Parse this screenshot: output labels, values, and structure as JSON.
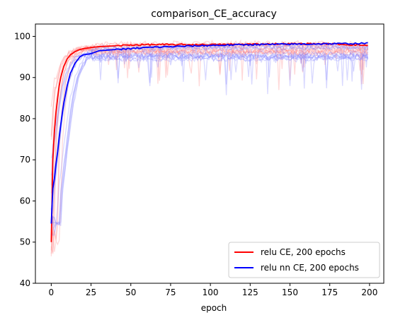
{
  "chart_data": {
    "type": "line",
    "title": "comparison_CE_accuracy",
    "xlabel": "epoch",
    "ylabel": "",
    "xlim": [
      -9.95,
      208.95
    ],
    "ylim": [
      40,
      103
    ],
    "xticks": [
      0,
      25,
      50,
      75,
      100,
      125,
      150,
      175,
      200
    ],
    "yticks": [
      40,
      50,
      60,
      70,
      80,
      90,
      100
    ],
    "grid": false,
    "legend_position": "lower-right",
    "mean_anchors_x": [
      0,
      1,
      2,
      3,
      4,
      5,
      6,
      7,
      8,
      10,
      12,
      15,
      18,
      20,
      25,
      30,
      40,
      50,
      60,
      75,
      100,
      125,
      150,
      175,
      199
    ],
    "series": [
      {
        "name": "relu CE, 200 epochs",
        "color": "#ff0000",
        "faint_color": "#ff8080",
        "values": [
          50.0,
          70.0,
          77.0,
          81.5,
          85.0,
          88.0,
          90.0,
          91.5,
          92.8,
          94.5,
          95.5,
          96.3,
          96.8,
          97.0,
          97.3,
          97.5,
          97.7,
          97.9,
          98.0,
          98.0,
          98.0,
          98.1,
          98.2,
          98.2,
          97.8
        ]
      },
      {
        "name": "relu nn CE, 200 epochs",
        "color": "#0000ff",
        "faint_color": "#8080ff",
        "values": [
          54.5,
          63.0,
          65.5,
          69.0,
          72.0,
          75.5,
          78.5,
          81.5,
          84.0,
          88.0,
          91.0,
          93.5,
          95.0,
          95.5,
          95.8,
          96.5,
          96.8,
          97.0,
          97.3,
          97.5,
          97.8,
          98.0,
          98.1,
          98.2,
          98.3
        ]
      }
    ],
    "faint_runs_per_series": 12
  }
}
